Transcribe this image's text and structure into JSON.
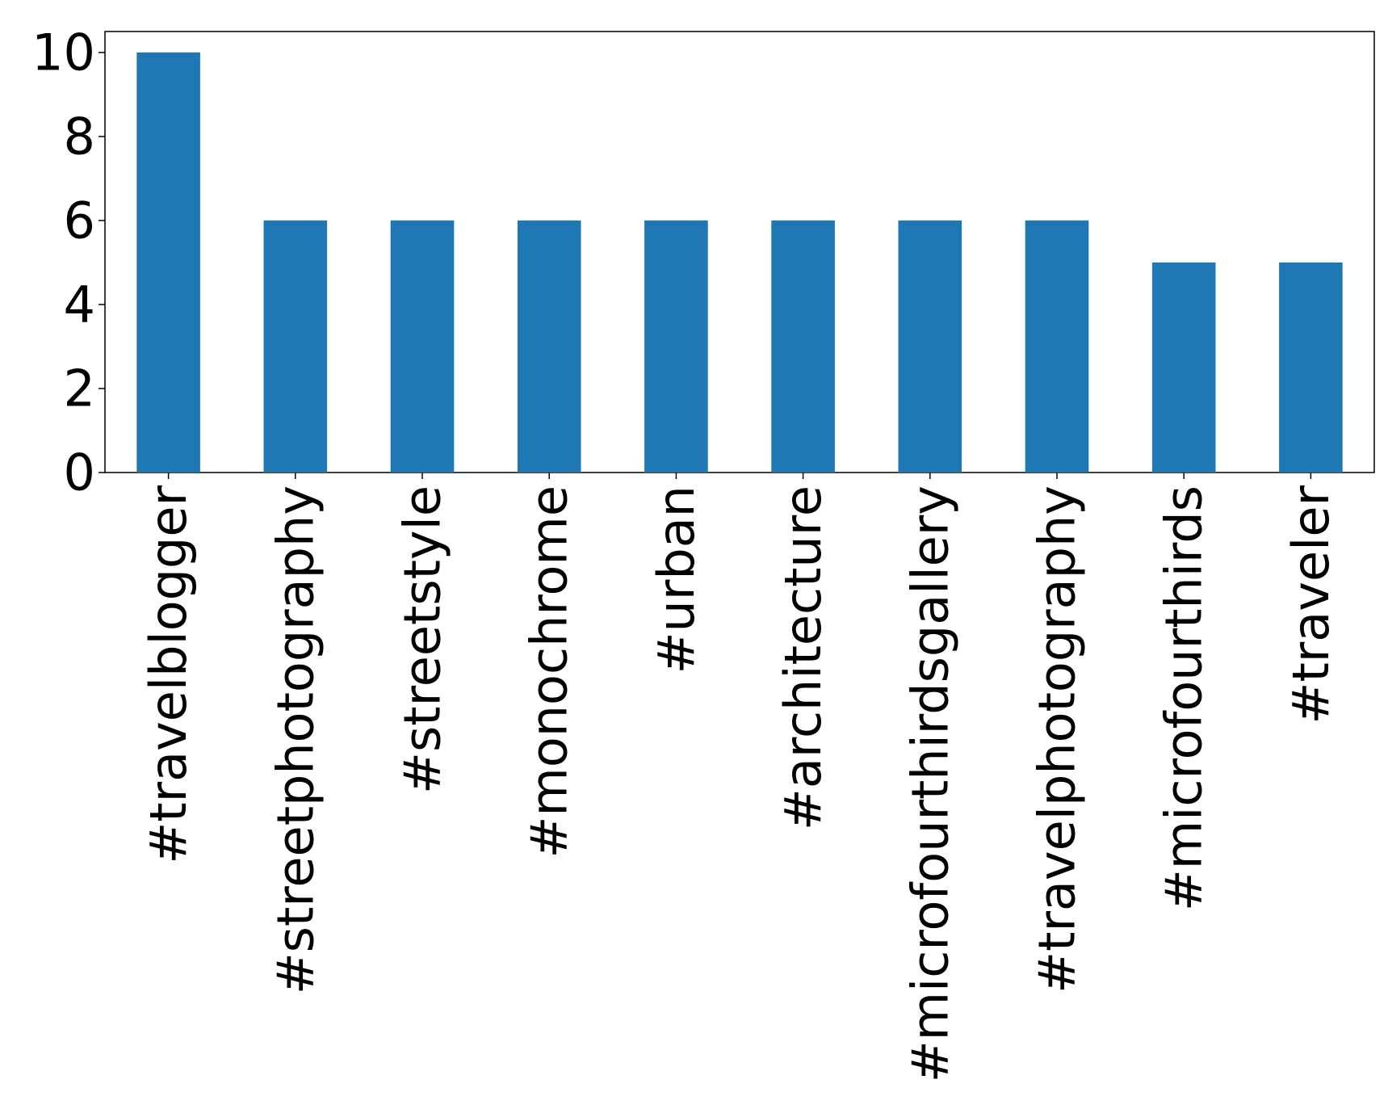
{
  "chart_data": {
    "type": "bar",
    "categories": [
      "#travelblogger",
      "#streetphotography",
      "#streetstyle",
      "#monochrome",
      "#urban",
      "#architecture",
      "#microfourthirdsgallery",
      "#travelphotography",
      "#microfourthirds",
      "#traveler"
    ],
    "values": [
      10,
      6,
      6,
      6,
      6,
      6,
      6,
      6,
      5,
      5
    ],
    "title": "",
    "xlabel": "",
    "ylabel": "",
    "ylim": [
      0,
      10.5
    ],
    "yticks": [
      0,
      2,
      4,
      6,
      8,
      10
    ],
    "bar_color": "#1f77b4",
    "grid": false,
    "legend": "none"
  }
}
